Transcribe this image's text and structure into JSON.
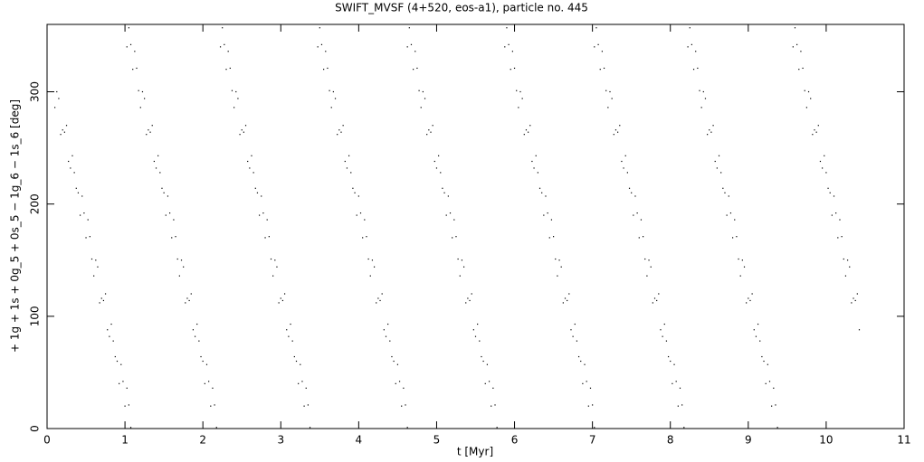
{
  "chart_data": {
    "type": "scatter",
    "title": "SWIFT_MVSF (4+520, eos-a1), particle no. 445",
    "xlabel": "t [Myr]",
    "ylabel": "+ 1g + 1s + 0g_5 + 0s_5 − 1g_6 − 1s_6 [deg]",
    "xlim": [
      0,
      11
    ],
    "ylim": [
      0,
      360
    ],
    "xticks": [
      0,
      1,
      2,
      3,
      4,
      5,
      6,
      7,
      8,
      9,
      10,
      11
    ],
    "yticks": [
      0,
      100,
      200,
      300
    ],
    "color": "#000000",
    "x": [
      0.1,
      0.15,
      0.2,
      0.25,
      0.3,
      0.35,
      0.4,
      0.45,
      0.5,
      0.55,
      0.6,
      0.65,
      0.7,
      0.75,
      0.8,
      0.85,
      0.9,
      0.95,
      1.0,
      1.05,
      0.125,
      0.175,
      0.225,
      0.275,
      0.325,
      0.375,
      0.425,
      0.475,
      0.525,
      0.575,
      0.625,
      0.675,
      0.725,
      0.775,
      0.825,
      0.875,
      0.925,
      0.975,
      1.025,
      1.075,
      1.05,
      1.1,
      1.15,
      1.2,
      1.25,
      1.3,
      1.35,
      1.4,
      1.45,
      1.5,
      1.55,
      1.6,
      1.65,
      1.7,
      1.75,
      1.8,
      1.85,
      1.9,
      1.95,
      2.0,
      2.05,
      2.1,
      2.15,
      1.025,
      1.075,
      1.125,
      1.175,
      1.225,
      1.275,
      1.325,
      1.375,
      1.425,
      1.475,
      1.525,
      1.575,
      1.625,
      1.675,
      1.725,
      1.775,
      1.825,
      1.875,
      1.925,
      1.975,
      2.025,
      2.075,
      2.125,
      2.175,
      2.25,
      2.3,
      2.35,
      2.4,
      2.45,
      2.5,
      2.55,
      2.6,
      2.65,
      2.7,
      2.75,
      2.8,
      2.85,
      2.9,
      2.95,
      3.0,
      3.05,
      3.1,
      3.15,
      3.2,
      3.25,
      3.3,
      3.35,
      2.225,
      2.275,
      2.325,
      2.375,
      2.425,
      2.475,
      2.525,
      2.575,
      2.625,
      2.675,
      2.725,
      2.775,
      2.825,
      2.875,
      2.925,
      2.975,
      3.025,
      3.075,
      3.125,
      3.175,
      3.225,
      3.275,
      3.325,
      3.375,
      3.5,
      3.55,
      3.6,
      3.65,
      3.7,
      3.75,
      3.8,
      3.85,
      3.9,
      3.95,
      4.0,
      4.05,
      4.1,
      4.15,
      4.2,
      4.25,
      4.3,
      4.35,
      4.4,
      4.45,
      4.5,
      4.55,
      4.6,
      3.475,
      3.525,
      3.575,
      3.625,
      3.675,
      3.725,
      3.775,
      3.825,
      3.875,
      3.925,
      3.975,
      4.025,
      4.075,
      4.125,
      4.175,
      4.225,
      4.275,
      4.325,
      4.375,
      4.425,
      4.475,
      4.525,
      4.575,
      4.625,
      4.65,
      4.7,
      4.75,
      4.8,
      4.85,
      4.9,
      4.95,
      5.0,
      5.05,
      5.1,
      5.15,
      5.2,
      5.25,
      5.3,
      5.35,
      5.4,
      5.45,
      5.5,
      5.55,
      5.6,
      5.65,
      5.7,
      5.75,
      4.625,
      4.675,
      4.725,
      4.775,
      4.825,
      4.875,
      4.925,
      4.975,
      5.025,
      5.075,
      5.125,
      5.175,
      5.225,
      5.275,
      5.325,
      5.375,
      5.425,
      5.475,
      5.525,
      5.575,
      5.625,
      5.675,
      5.725,
      5.775,
      5.9,
      5.95,
      6.0,
      6.05,
      6.1,
      6.15,
      6.2,
      6.25,
      6.3,
      6.35,
      6.4,
      6.45,
      6.5,
      6.55,
      6.6,
      6.65,
      6.7,
      6.75,
      6.8,
      6.85,
      6.9,
      6.95,
      7.0,
      5.875,
      5.925,
      5.975,
      6.025,
      6.075,
      6.125,
      6.175,
      6.225,
      6.275,
      6.325,
      6.375,
      6.425,
      6.475,
      6.525,
      6.575,
      6.625,
      6.675,
      6.725,
      6.775,
      6.825,
      6.875,
      6.925,
      6.975,
      7.025,
      7.05,
      7.1,
      7.15,
      7.2,
      7.25,
      7.3,
      7.35,
      7.4,
      7.45,
      7.5,
      7.55,
      7.6,
      7.65,
      7.7,
      7.75,
      7.8,
      7.85,
      7.9,
      7.95,
      8.0,
      8.05,
      8.1,
      8.15,
      7.025,
      7.075,
      7.125,
      7.175,
      7.225,
      7.275,
      7.325,
      7.375,
      7.425,
      7.475,
      7.525,
      7.575,
      7.625,
      7.675,
      7.725,
      7.775,
      7.825,
      7.875,
      7.925,
      7.975,
      8.025,
      8.075,
      8.125,
      8.175,
      8.25,
      8.3,
      8.35,
      8.4,
      8.45,
      8.5,
      8.55,
      8.6,
      8.65,
      8.7,
      8.75,
      8.8,
      8.85,
      8.9,
      8.95,
      9.0,
      9.05,
      9.1,
      9.15,
      9.2,
      9.25,
      9.3,
      9.35,
      8.225,
      8.275,
      8.325,
      8.375,
      8.425,
      8.475,
      8.525,
      8.575,
      8.625,
      8.675,
      8.725,
      8.775,
      8.825,
      8.875,
      8.925,
      8.975,
      9.025,
      9.075,
      9.125,
      9.175,
      9.225,
      9.275,
      9.325,
      9.375,
      9.6,
      9.65,
      9.7,
      9.75,
      9.8,
      9.85,
      9.9,
      9.95,
      10.0,
      10.05,
      10.1,
      10.15,
      10.2,
      10.25,
      10.3,
      10.35,
      10.4,
      9.575,
      9.625,
      9.675,
      9.725,
      9.775,
      9.825,
      9.875,
      9.925,
      9.975,
      10.025,
      10.075,
      10.125,
      10.175,
      10.225,
      10.275,
      10.325,
      10.375,
      10.425
    ],
    "y": [
      286,
      294,
      266,
      270,
      232,
      228,
      210,
      207,
      170,
      171,
      136,
      144,
      116,
      120,
      82,
      78,
      60,
      57,
      20,
      21,
      300,
      262,
      264,
      238,
      243,
      214,
      190,
      192,
      186,
      151,
      150,
      112,
      114,
      88,
      93,
      64,
      40,
      42,
      36,
      1,
      357,
      320,
      321,
      286,
      294,
      266,
      270,
      232,
      228,
      210,
      207,
      170,
      171,
      136,
      144,
      116,
      120,
      82,
      78,
      60,
      57,
      20,
      21,
      340,
      342,
      336,
      301,
      300,
      262,
      264,
      238,
      243,
      214,
      190,
      192,
      186,
      151,
      150,
      112,
      114,
      88,
      93,
      64,
      40,
      42,
      36,
      1,
      357,
      320,
      321,
      286,
      294,
      266,
      270,
      232,
      228,
      210,
      207,
      170,
      171,
      136,
      144,
      116,
      120,
      82,
      78,
      60,
      57,
      20,
      21,
      340,
      342,
      336,
      301,
      300,
      262,
      264,
      238,
      243,
      214,
      190,
      192,
      186,
      151,
      150,
      112,
      114,
      88,
      93,
      64,
      40,
      42,
      36,
      1,
      357,
      320,
      321,
      286,
      294,
      266,
      270,
      232,
      228,
      210,
      207,
      170,
      171,
      136,
      144,
      116,
      120,
      82,
      78,
      60,
      57,
      20,
      21,
      340,
      342,
      336,
      301,
      300,
      262,
      264,
      238,
      243,
      214,
      190,
      192,
      186,
      151,
      150,
      112,
      114,
      88,
      93,
      64,
      40,
      42,
      36,
      1,
      357,
      320,
      321,
      286,
      294,
      266,
      270,
      232,
      228,
      210,
      207,
      170,
      171,
      136,
      144,
      116,
      120,
      82,
      78,
      60,
      57,
      20,
      21,
      340,
      342,
      336,
      301,
      300,
      262,
      264,
      238,
      243,
      214,
      190,
      192,
      186,
      151,
      150,
      112,
      114,
      88,
      93,
      64,
      40,
      42,
      36,
      1,
      357,
      320,
      321,
      286,
      294,
      266,
      270,
      232,
      228,
      210,
      207,
      170,
      171,
      136,
      144,
      116,
      120,
      82,
      78,
      60,
      57,
      20,
      21,
      340,
      342,
      336,
      301,
      300,
      262,
      264,
      238,
      243,
      214,
      190,
      192,
      186,
      151,
      150,
      112,
      114,
      88,
      93,
      64,
      40,
      42,
      36,
      1,
      357,
      320,
      321,
      286,
      294,
      266,
      270,
      232,
      228,
      210,
      207,
      170,
      171,
      136,
      144,
      116,
      120,
      82,
      78,
      60,
      57,
      20,
      21,
      340,
      342,
      336,
      301,
      300,
      262,
      264,
      238,
      243,
      214,
      190,
      192,
      186,
      151,
      150,
      112,
      114,
      88,
      93,
      64,
      40,
      42,
      36,
      1,
      357,
      320,
      321,
      286,
      294,
      266,
      270,
      232,
      228,
      210,
      207,
      170,
      171,
      136,
      144,
      116,
      120,
      82,
      78,
      60,
      57,
      20,
      21,
      340,
      342,
      336,
      301,
      300,
      262,
      264,
      238,
      243,
      214,
      190,
      192,
      186,
      151,
      150,
      112,
      114,
      88,
      93,
      64,
      40,
      42,
      36,
      1,
      357,
      320,
      321,
      286,
      294,
      266,
      270,
      232,
      228,
      210,
      207,
      170,
      171,
      136,
      144,
      116,
      120,
      340,
      342,
      336,
      301,
      300,
      262,
      264,
      238,
      243,
      214,
      190,
      192,
      186,
      151,
      150,
      112,
      114,
      88
    ]
  }
}
